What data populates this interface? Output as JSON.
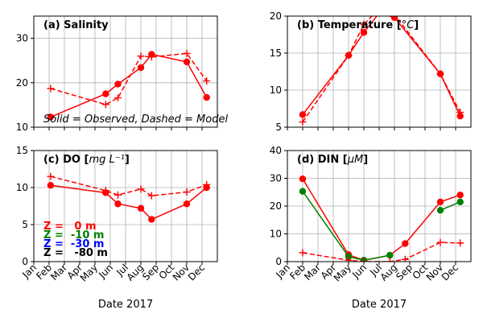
{
  "figure": {
    "note": "Solid = Observed, Dashed = Model",
    "depth_legend": [
      {
        "label": "Z =   0 m",
        "color": "#ff0000"
      },
      {
        "label": "Z =  -10 m",
        "color": "#008000"
      },
      {
        "label": "Z =  -30 m",
        "color": "#0000ff"
      },
      {
        "label": "Z =   -80 m",
        "color": "#000000"
      }
    ]
  },
  "chart_data": [
    {
      "type": "line",
      "title": "(a) Salinity",
      "xlabel": "",
      "ylabel": "",
      "categories": [
        "Jan",
        "Feb",
        "Mar",
        "Apr",
        "May",
        "Jun",
        "Jul",
        "Aug",
        "Sep",
        "Oct",
        "Nov",
        "Dec"
      ],
      "xlim": [
        1,
        13
      ],
      "ylim": [
        10,
        35
      ],
      "yticks": [
        10,
        20,
        30
      ],
      "grid": true,
      "series": [
        {
          "color": "#ff0000",
          "style": "solid",
          "marker": "circle",
          "x": [
            2.1,
            5.7,
            6.5,
            8.0,
            8.7,
            11.0,
            12.3
          ],
          "y": [
            12.3,
            17.5,
            19.7,
            23.4,
            26.4,
            24.7,
            16.7
          ]
        },
        {
          "color": "#ff0000",
          "style": "dashed",
          "marker": "plus",
          "x": [
            2.1,
            5.7,
            6.5,
            8.0,
            8.7,
            11.0,
            12.3
          ],
          "y": [
            18.7,
            15.1,
            16.6,
            26.0,
            25.8,
            26.6,
            20.4
          ]
        }
      ]
    },
    {
      "type": "line",
      "title": "(b) Temperature [",
      "title_unit": "°C",
      "title_end": "]",
      "xlabel": "",
      "ylabel": "",
      "categories": [
        "Jan",
        "Feb",
        "Mar",
        "Apr",
        "May",
        "Jun",
        "Jul",
        "Aug",
        "Sep",
        "Oct",
        "Nov",
        "Dec"
      ],
      "xlim": [
        1,
        13
      ],
      "ylim": [
        5,
        20
      ],
      "yticks": [
        5,
        10,
        15,
        20
      ],
      "grid": true,
      "series": [
        {
          "color": "#ff0000",
          "style": "solid",
          "marker": "circle",
          "x": [
            2.0,
            5.0,
            6.0,
            7.0,
            8.0,
            11.0,
            12.3
          ],
          "y": [
            6.7,
            14.7,
            17.8,
            20.4,
            19.8,
            12.2,
            6.5
          ]
        },
        {
          "color": "#ff0000",
          "style": "dashed",
          "marker": "plus",
          "x": [
            2.0,
            5.0,
            6.0,
            7.0,
            8.0,
            11.0,
            12.3
          ],
          "y": [
            5.7,
            14.7,
            18.9,
            21.0,
            20.2,
            12.2,
            7.0
          ]
        }
      ]
    },
    {
      "type": "line",
      "title": "(c) DO [",
      "title_unit": "mg L⁻¹",
      "title_end": "]",
      "xlabel": "Date 2017",
      "ylabel": "",
      "categories": [
        "Jan",
        "Feb",
        "Mar",
        "Apr",
        "May",
        "Jun",
        "Jul",
        "Aug",
        "Sep",
        "Oct",
        "Nov",
        "Dec"
      ],
      "xlim": [
        1,
        13
      ],
      "ylim": [
        0,
        15
      ],
      "yticks": [
        0,
        5,
        10,
        15
      ],
      "grid": true,
      "series": [
        {
          "color": "#ff0000",
          "style": "solid",
          "marker": "circle",
          "x": [
            2.1,
            5.7,
            6.5,
            8.0,
            8.7,
            11.0,
            12.3
          ],
          "y": [
            10.3,
            9.3,
            7.8,
            7.2,
            5.7,
            7.8,
            10.0
          ]
        },
        {
          "color": "#ff0000",
          "style": "dashed",
          "marker": "plus",
          "x": [
            2.1,
            5.7,
            6.5,
            8.0,
            8.7,
            11.0,
            12.3
          ],
          "y": [
            11.5,
            9.6,
            9.0,
            9.8,
            8.9,
            9.4,
            10.4
          ]
        }
      ]
    },
    {
      "type": "line",
      "title": "(d) DIN  [",
      "title_unit": "μM",
      "title_end": "]",
      "xlabel": "Date 2017",
      "ylabel": "",
      "categories": [
        "Jan",
        "Feb",
        "Mar",
        "Apr",
        "May",
        "Jun",
        "Jul",
        "Aug",
        "Sep",
        "Oct",
        "Nov",
        "Dec"
      ],
      "xlim": [
        1,
        13
      ],
      "ylim": [
        0,
        40
      ],
      "yticks": [
        0,
        10,
        20,
        30,
        40
      ],
      "grid": true,
      "series": [
        {
          "color": "#ff0000",
          "style": "solid",
          "marker": "circle",
          "x": [
            2.0,
            5.0,
            6.0,
            7.7,
            8.7,
            11.0,
            12.3
          ],
          "y": [
            29.8,
            2.5,
            0.5,
            2.3,
            6.5,
            21.5,
            24.0
          ]
        },
        {
          "color": "#008000",
          "style": "solid",
          "marker": "circle",
          "x": [
            2.0,
            5.0,
            6.0,
            7.7
          ],
          "y": [
            25.3,
            1.8,
            0.5,
            2.3
          ]
        },
        {
          "color": "#008000",
          "style": "solid",
          "marker": "circle",
          "x": [
            11.0,
            12.3
          ],
          "y": [
            18.5,
            21.5
          ]
        },
        {
          "color": "#ff0000",
          "style": "dashed",
          "marker": "plus",
          "x": [
            2.0,
            5.0,
            6.0,
            7.7,
            8.7,
            11.0,
            12.3
          ],
          "y": [
            3.2,
            0.5,
            0.0,
            0.0,
            0.8,
            6.9,
            6.7
          ]
        }
      ]
    }
  ]
}
